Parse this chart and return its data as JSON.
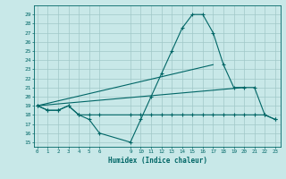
{
  "xlabel": "Humidex (Indice chaleur)",
  "bg_color": "#c8e8e8",
  "line_color": "#006666",
  "grid_color": "#a0c8c8",
  "line1_x": [
    0,
    1,
    2,
    3,
    4,
    5,
    6,
    9,
    10,
    11,
    12,
    13,
    14,
    15,
    16,
    17,
    18,
    19,
    20,
    21,
    22,
    23
  ],
  "line1_y": [
    19,
    18.5,
    18.5,
    19,
    18,
    17.5,
    16,
    15,
    17.5,
    20,
    22.5,
    25,
    27.5,
    29,
    29,
    27,
    23.5,
    21,
    21,
    21,
    18,
    17.5
  ],
  "line2_x": [
    0,
    1,
    2,
    3,
    4,
    5,
    6,
    9,
    10,
    11,
    12,
    13,
    14,
    15,
    16,
    17,
    18,
    19,
    20,
    21,
    22,
    23
  ],
  "line2_y": [
    19,
    18.5,
    18.5,
    19,
    18,
    18,
    18,
    18,
    18,
    18,
    18,
    18,
    18,
    18,
    18,
    18,
    18,
    18,
    18,
    18,
    18,
    17.5
  ],
  "line3_x": [
    0,
    17
  ],
  "line3_y": [
    19,
    23.5
  ],
  "line4_x": [
    0,
    20
  ],
  "line4_y": [
    19,
    21
  ],
  "xticks": [
    0,
    1,
    2,
    3,
    4,
    5,
    6,
    9,
    10,
    11,
    12,
    13,
    14,
    15,
    16,
    17,
    18,
    19,
    20,
    21,
    22,
    23
  ],
  "yticks": [
    15,
    16,
    17,
    18,
    19,
    20,
    21,
    22,
    23,
    24,
    25,
    26,
    27,
    28,
    29
  ],
  "xlim": [
    -0.3,
    23.5
  ],
  "ylim": [
    14.5,
    30.0
  ]
}
